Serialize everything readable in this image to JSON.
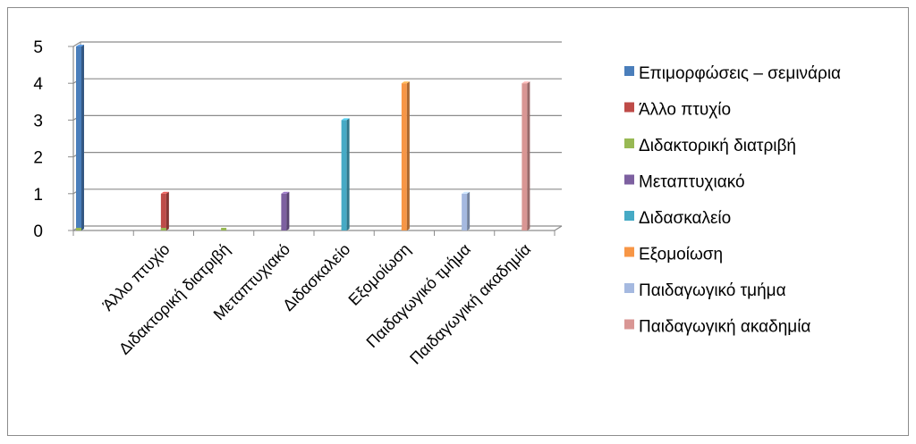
{
  "chart_data": {
    "type": "bar",
    "categories": [
      "Επιμορφώσεις – σεμινάρια",
      "Άλλο πτυχίο",
      "Διδακτορική διατριβή",
      "Μεταπτυχιακό",
      "Διδασκαλείο",
      "Εξομοίωση",
      "Παιδαγωγικό τμήμα",
      "Παιδαγωγική ακαδημία"
    ],
    "tick_labels": [
      "",
      "Άλλο πτυχίο",
      "Διδακτορική διατριβή",
      "Μεταπτυχιακό",
      "Διδασκαλείο",
      "Εξομοίωση",
      "Παιδαγωγικό τμήμα",
      "Παιδαγωγική ακαδημία"
    ],
    "series": [
      {
        "name": "Επιμορφώσεις – σεμινάρια",
        "color": "#4a7ebb",
        "values": [
          5,
          0,
          0,
          0,
          0,
          0,
          0,
          0
        ]
      },
      {
        "name": "Άλλο πτυχίο",
        "color": "#be4b48",
        "values": [
          0,
          1,
          0,
          0,
          0,
          0,
          0,
          0
        ]
      },
      {
        "name": "Διδακτορική διατριβή",
        "color": "#98b954",
        "values": [
          0,
          0,
          0,
          0,
          0,
          0,
          0,
          0
        ]
      },
      {
        "name": "Μεταπτυχιακό",
        "color": "#7d60a0",
        "values": [
          0,
          0,
          0,
          1,
          0,
          0,
          0,
          0
        ]
      },
      {
        "name": "Διδασκαλείο",
        "color": "#46aac5",
        "values": [
          0,
          0,
          0,
          0,
          3,
          0,
          0,
          0
        ]
      },
      {
        "name": "Εξομοίωση",
        "color": "#f79646",
        "values": [
          0,
          0,
          0,
          0,
          0,
          4,
          0,
          0
        ]
      },
      {
        "name": "Παιδαγωγικό τμήμα",
        "color": "#a5b9e0",
        "values": [
          0,
          0,
          0,
          0,
          0,
          0,
          1,
          0
        ]
      },
      {
        "name": "Παιδαγωγική ακαδημία",
        "color": "#d99694",
        "values": [
          0,
          0,
          0,
          0,
          0,
          0,
          0,
          4
        ]
      }
    ],
    "y_ticks": [
      "0",
      "1",
      "2",
      "3",
      "4",
      "5"
    ],
    "ylim": [
      0,
      5
    ],
    "grid": true,
    "legend": "right",
    "title": "",
    "xlabel": "",
    "ylabel": ""
  }
}
